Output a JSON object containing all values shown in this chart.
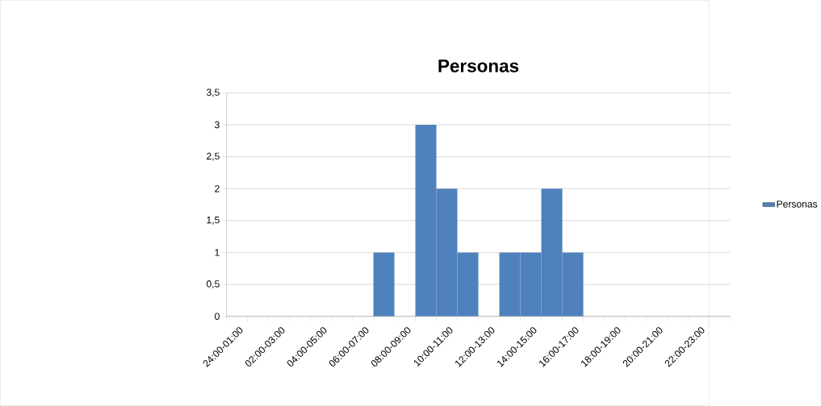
{
  "chart_data": {
    "type": "bar",
    "title": "Personas",
    "categories": [
      "24:00-01:00",
      null,
      "02:00-03:00",
      null,
      "04:00-05:00",
      null,
      "06:00-07:00",
      null,
      "08:00-09:00",
      null,
      "10:00-11:00",
      null,
      "12:00-13:00",
      null,
      "14:00-15:00",
      null,
      "16:00-17:00",
      null,
      "18:00-19:00",
      null,
      "20:00-21:00",
      null,
      "22:00-23:00",
      null
    ],
    "series": [
      {
        "name": "Personas",
        "color": "#4f81bd",
        "values": [
          0,
          0,
          0,
          0,
          0,
          0,
          0,
          1,
          0,
          3,
          2,
          1,
          0,
          1,
          1,
          2,
          1,
          0,
          0,
          0,
          0,
          0,
          0,
          0
        ]
      }
    ],
    "ylim": [
      0,
      3.5
    ],
    "yticks": [
      0,
      {
        "value": 0.5,
        "label": "0,5"
      },
      1,
      {
        "value": 1.5,
        "label": "1,5"
      },
      2,
      {
        "value": 2.5,
        "label": "2,5"
      },
      3,
      {
        "value": 3.5,
        "label": "3,5"
      }
    ],
    "grid": "y",
    "legend": "right"
  }
}
